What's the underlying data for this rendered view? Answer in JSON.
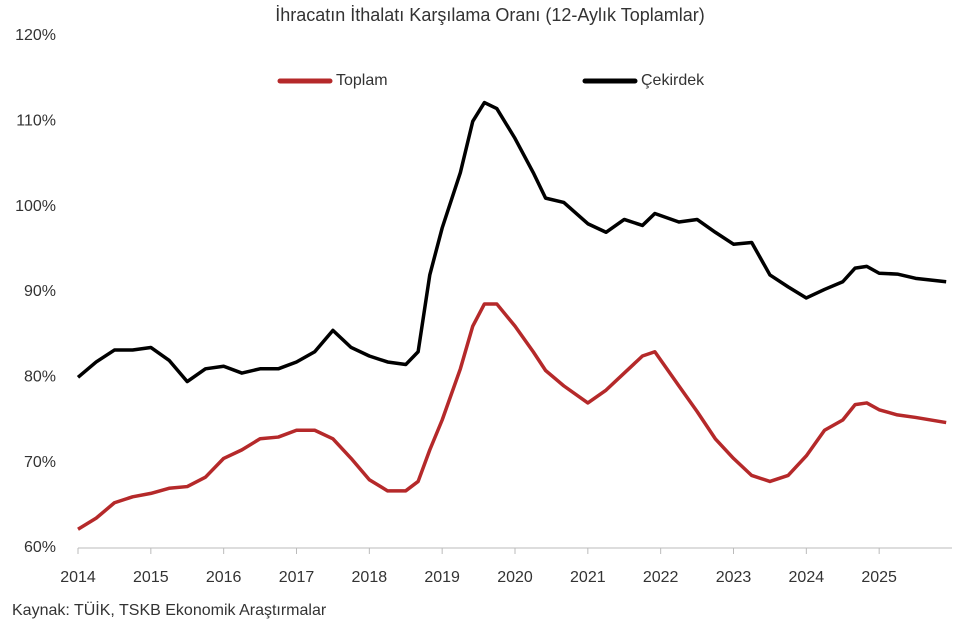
{
  "chart_data": {
    "type": "line",
    "title": "İhracatın İthalatı Karşılama Oranı (12-Aylık Toplamlar)",
    "source": "Kaynak: TÜİK, TSKB Ekonomik Araştırmalar",
    "x": [
      2014,
      2014.25,
      2014.5,
      2014.75,
      2015,
      2015.25,
      2015.5,
      2015.75,
      2016,
      2016.25,
      2016.5,
      2016.75,
      2017,
      2017.25,
      2017.5,
      2017.75,
      2018,
      2018.25,
      2018.5,
      2018.67,
      2018.83,
      2019,
      2019.25,
      2019.42,
      2019.58,
      2019.75,
      2020,
      2020.25,
      2020.42,
      2020.67,
      2021,
      2021.25,
      2021.5,
      2021.75,
      2021.92,
      2022.25,
      2022.5,
      2022.75,
      2023,
      2023.25,
      2023.5,
      2023.75,
      2024,
      2024.25,
      2024.5,
      2024.67,
      2024.83,
      2025,
      2025.25,
      2025.5,
      2025.92
    ],
    "series": [
      {
        "name": "Toplam",
        "color": "#b5292a",
        "values": [
          62.2,
          63.5,
          65.3,
          66,
          66.4,
          67,
          67.2,
          68.3,
          70.5,
          71.5,
          72.8,
          73,
          73.8,
          73.8,
          72.8,
          70.5,
          68,
          66.7,
          66.7,
          67.8,
          71.5,
          75,
          81,
          86,
          88.6,
          88.6,
          86,
          83,
          80.8,
          79,
          77,
          78.5,
          80.5,
          82.5,
          83,
          79,
          76,
          72.8,
          70.5,
          68.5,
          67.8,
          68.5,
          70.8,
          73.8,
          75,
          76.8,
          77,
          76.2,
          75.6,
          75.3,
          74.7
        ]
      },
      {
        "name": "Çekirdek",
        "color": "#000000",
        "values": [
          80,
          81.8,
          83.2,
          83.2,
          83.5,
          82,
          79.5,
          81,
          81.3,
          80.5,
          81,
          81,
          81.8,
          83,
          85.5,
          83.5,
          82.5,
          81.8,
          81.5,
          83,
          92,
          97.5,
          104,
          110,
          112.2,
          111.5,
          108,
          104,
          101,
          100.5,
          98,
          97,
          98.5,
          97.8,
          99.2,
          98.2,
          98.5,
          97,
          95.6,
          95.8,
          92,
          90.6,
          89.3,
          90.3,
          91.2,
          92.8,
          93,
          92.2,
          92.1,
          91.6,
          91.2
        ]
      }
    ],
    "xlim": [
      2014,
      2026
    ],
    "xticks": [
      2014,
      2015,
      2016,
      2017,
      2018,
      2019,
      2020,
      2021,
      2022,
      2023,
      2024,
      2025
    ],
    "ylim": [
      60,
      120
    ],
    "yticks": [
      {
        "value": 60,
        "label": "60%"
      },
      {
        "value": 70,
        "label": "70%"
      },
      {
        "value": 80,
        "label": "80%"
      },
      {
        "value": 90,
        "label": "90%"
      },
      {
        "value": 100,
        "label": "100%"
      },
      {
        "value": 110,
        "label": "110%"
      },
      {
        "value": 120,
        "label": "120%"
      }
    ],
    "grid": false,
    "legend": "top"
  }
}
